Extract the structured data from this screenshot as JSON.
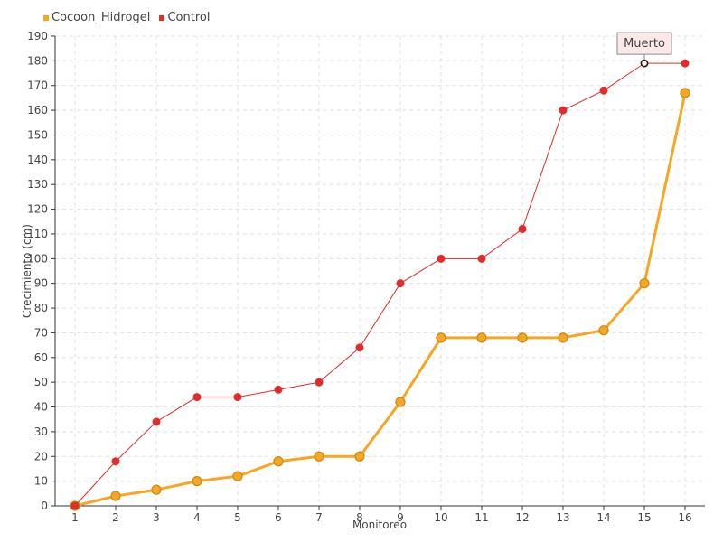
{
  "chart_data": {
    "type": "line",
    "xlabel": "Monitoreo",
    "ylabel": "Crecimiento (cm)",
    "categories": [
      "1",
      "2",
      "3",
      "4",
      "5",
      "6",
      "7",
      "8",
      "9",
      "10",
      "11",
      "12",
      "13",
      "14",
      "15",
      "16"
    ],
    "ylim": [
      0,
      190
    ],
    "y_ticks": [
      0,
      10,
      20,
      30,
      40,
      50,
      60,
      70,
      80,
      90,
      100,
      110,
      120,
      130,
      140,
      150,
      160,
      170,
      180,
      190
    ],
    "grid": true,
    "legend_position": "top-left",
    "series": [
      {
        "name": "Cocoon_Hidrogel",
        "color": "#f5a623",
        "values": [
          0,
          4,
          6.5,
          10,
          12,
          18,
          20,
          20,
          42,
          68,
          68,
          68,
          68,
          71,
          90,
          167
        ]
      },
      {
        "name": "Control",
        "color": "#e02c2c",
        "values": [
          0,
          18,
          34,
          44,
          44,
          47,
          50,
          64,
          90,
          100,
          100,
          112,
          160,
          168,
          179,
          179
        ]
      }
    ],
    "annotations": [
      {
        "text": "Muerto",
        "series": "Control",
        "x": "15",
        "y": 179
      }
    ]
  }
}
